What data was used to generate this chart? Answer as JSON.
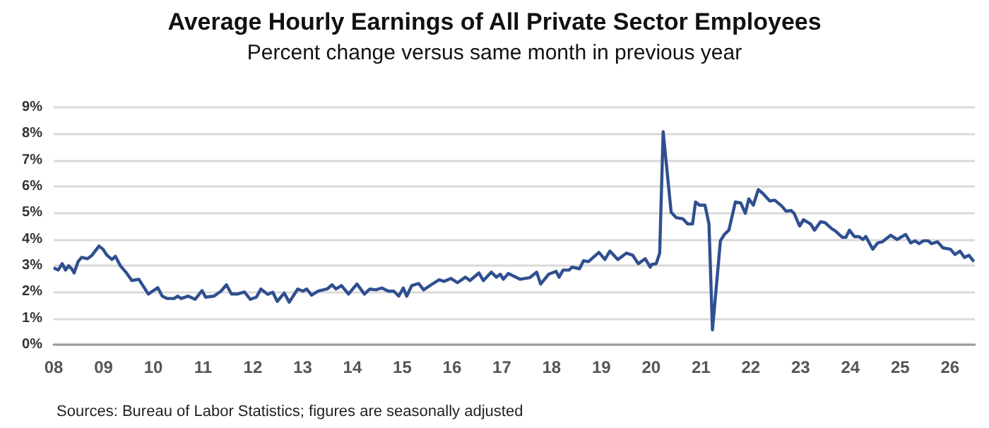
{
  "chart_data": {
    "type": "line",
    "title": "Average Hourly Earnings of All Private Sector Employees",
    "subtitle": "Percent change versus same month in previous year",
    "annotations": [
      "Sources: Bureau of Labor Statistics; figures are seasonally adjusted"
    ],
    "x": [
      2008.0,
      2008.09,
      2008.17,
      2008.24,
      2008.3,
      2008.36,
      2008.41,
      2008.49,
      2008.56,
      2008.68,
      2008.77,
      2008.91,
      2008.99,
      2009.07,
      2009.17,
      2009.24,
      2009.34,
      2009.45,
      2009.57,
      2009.71,
      2009.9,
      2010.09,
      2010.18,
      2010.28,
      2010.42,
      2010.49,
      2010.56,
      2010.7,
      2010.84,
      2010.98,
      2011.05,
      2011.22,
      2011.36,
      2011.47,
      2011.57,
      2011.69,
      2011.83,
      2011.95,
      2012.07,
      2012.16,
      2012.3,
      2012.4,
      2012.49,
      2012.63,
      2012.73,
      2012.9,
      2013.01,
      2013.08,
      2013.18,
      2013.31,
      2013.49,
      2013.59,
      2013.67,
      2013.78,
      2013.92,
      2014.09,
      2014.24,
      2014.35,
      2014.47,
      2014.59,
      2014.72,
      2014.83,
      2014.93,
      2015.02,
      2015.09,
      2015.19,
      2015.33,
      2015.43,
      2015.58,
      2015.74,
      2015.84,
      2015.98,
      2016.11,
      2016.27,
      2016.36,
      2016.54,
      2016.63,
      2016.79,
      2016.89,
      2016.97,
      2017.03,
      2017.13,
      2017.37,
      2017.56,
      2017.7,
      2017.78,
      2017.94,
      2018.09,
      2018.15,
      2018.23,
      2018.35,
      2018.41,
      2018.56,
      2018.64,
      2018.74,
      2018.95,
      2019.07,
      2019.17,
      2019.33,
      2019.5,
      2019.63,
      2019.74,
      2019.88,
      2019.98,
      2020.01,
      2020.1,
      2020.17,
      2020.24,
      2020.4,
      2020.5,
      2020.64,
      2020.73,
      2020.83,
      2020.89,
      2020.97,
      2021.08,
      2021.16,
      2021.23,
      2021.39,
      2021.47,
      2021.56,
      2021.69,
      2021.8,
      2021.89,
      2021.96,
      2022.05,
      2022.15,
      2022.24,
      2022.38,
      2022.48,
      2022.62,
      2022.71,
      2022.81,
      2022.87,
      2022.98,
      2023.06,
      2023.2,
      2023.28,
      2023.4,
      2023.49,
      2023.61,
      2023.7,
      2023.84,
      2023.91,
      2023.98,
      2024.08,
      2024.17,
      2024.25,
      2024.31,
      2024.45,
      2024.55,
      2024.64,
      2024.81,
      2024.94,
      2025.11,
      2025.21,
      2025.3,
      2025.38,
      2025.47,
      2025.56,
      2025.63,
      2025.75,
      2025.86,
      2026.01,
      2026.1,
      2026.2,
      2026.29,
      2026.38,
      2026.48
    ],
    "series": [
      {
        "color": "#2f4f8f",
        "values": [
          2.91,
          2.83,
          3.07,
          2.83,
          2.99,
          2.88,
          2.72,
          3.15,
          3.31,
          3.26,
          3.39,
          3.74,
          3.62,
          3.39,
          3.23,
          3.35,
          2.99,
          2.75,
          2.43,
          2.48,
          1.92,
          2.16,
          1.84,
          1.75,
          1.75,
          1.84,
          1.75,
          1.84,
          1.72,
          2.05,
          1.8,
          1.84,
          2.03,
          2.27,
          1.92,
          1.92,
          2.0,
          1.72,
          1.8,
          2.11,
          1.91,
          1.99,
          1.64,
          1.96,
          1.61,
          2.11,
          2.03,
          2.11,
          1.88,
          2.03,
          2.11,
          2.27,
          2.11,
          2.24,
          1.92,
          2.3,
          1.92,
          2.11,
          2.08,
          2.15,
          2.03,
          2.03,
          1.84,
          2.15,
          1.84,
          2.24,
          2.32,
          2.08,
          2.27,
          2.46,
          2.4,
          2.51,
          2.35,
          2.56,
          2.43,
          2.72,
          2.43,
          2.75,
          2.56,
          2.67,
          2.48,
          2.7,
          2.48,
          2.54,
          2.75,
          2.3,
          2.67,
          2.78,
          2.56,
          2.83,
          2.83,
          2.94,
          2.88,
          3.18,
          3.15,
          3.5,
          3.23,
          3.55,
          3.23,
          3.47,
          3.39,
          3.07,
          3.26,
          2.94,
          3.04,
          3.07,
          3.47,
          8.08,
          5.02,
          4.82,
          4.77,
          4.58,
          4.58,
          5.41,
          5.29,
          5.29,
          4.58,
          0.56,
          3.94,
          4.18,
          4.34,
          5.41,
          5.37,
          4.98,
          5.53,
          5.29,
          5.88,
          5.74,
          5.45,
          5.48,
          5.26,
          5.06,
          5.09,
          4.98,
          4.5,
          4.74,
          4.58,
          4.34,
          4.66,
          4.63,
          4.42,
          4.31,
          4.07,
          4.07,
          4.34,
          4.1,
          4.1,
          3.99,
          4.1,
          3.62,
          3.86,
          3.9,
          4.15,
          3.99,
          4.18,
          3.86,
          3.94,
          3.83,
          3.94,
          3.94,
          3.83,
          3.9,
          3.67,
          3.62,
          3.42,
          3.55,
          3.31,
          3.39,
          3.15
        ]
      }
    ],
    "xlim": [
      2008,
      2026.5
    ],
    "xticks": [
      {
        "value": 2008,
        "label": "08"
      },
      {
        "value": 2009,
        "label": "09"
      },
      {
        "value": 2010,
        "label": "10"
      },
      {
        "value": 2011,
        "label": "11"
      },
      {
        "value": 2012,
        "label": "12"
      },
      {
        "value": 2013,
        "label": "13"
      },
      {
        "value": 2014,
        "label": "14"
      },
      {
        "value": 2015,
        "label": "15"
      },
      {
        "value": 2016,
        "label": "16"
      },
      {
        "value": 2017,
        "label": "17"
      },
      {
        "value": 2018,
        "label": "18"
      },
      {
        "value": 2019,
        "label": "19"
      },
      {
        "value": 2020,
        "label": "20"
      },
      {
        "value": 2021,
        "label": "21"
      },
      {
        "value": 2022,
        "label": "22"
      },
      {
        "value": 2023,
        "label": "23"
      },
      {
        "value": 2024,
        "label": "24"
      },
      {
        "value": 2025,
        "label": "25"
      },
      {
        "value": 2026,
        "label": "26"
      }
    ],
    "ylim": [
      0,
      9
    ],
    "yticks": [
      {
        "value": 0,
        "label": "0%"
      },
      {
        "value": 1,
        "label": "1%"
      },
      {
        "value": 2,
        "label": "2%"
      },
      {
        "value": 3,
        "label": "3%"
      },
      {
        "value": 4,
        "label": "4%"
      },
      {
        "value": 5,
        "label": "5%"
      },
      {
        "value": 6,
        "label": "6%"
      },
      {
        "value": 7,
        "label": "7%"
      },
      {
        "value": 8,
        "label": "8%"
      },
      {
        "value": 9,
        "label": "9%"
      }
    ],
    "grid": "y"
  }
}
